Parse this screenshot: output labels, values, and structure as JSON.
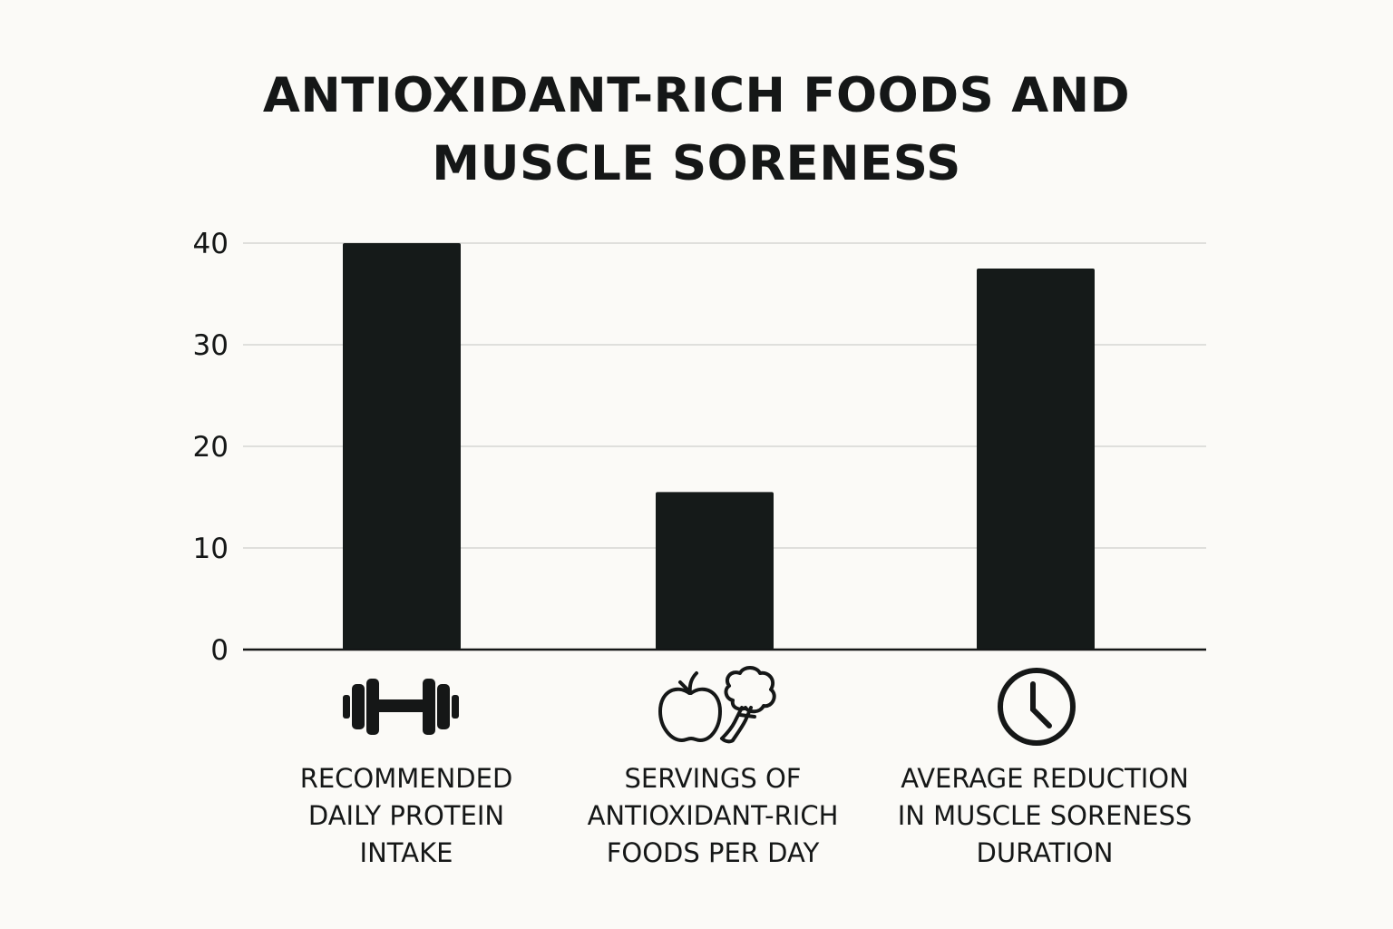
{
  "chart_data": {
    "type": "bar",
    "title": [
      "ANTIOXIDANT-RICH FOODS AND",
      "MUSCLE SORENESS"
    ],
    "categories": [
      [
        "RECOMMENDED",
        "DAILY PROTEIN",
        "INTAKE"
      ],
      [
        "SERVINGS OF",
        "ANTIOXIDANT-RICH",
        "FOODS PER DAY"
      ],
      [
        "AVERAGE REDUCTION",
        "IN MUSCLE SORENESS",
        "DURATION"
      ]
    ],
    "category_icons": [
      "dumbbell-icon",
      "apple-broccoli-icon",
      "clock-icon"
    ],
    "values": [
      40,
      15.5,
      37.5
    ],
    "ylim": [
      0,
      40
    ],
    "yticks": [
      "0",
      "10",
      "20",
      "30",
      "40"
    ],
    "grid": true,
    "bar_color": "#151a19",
    "grid_color": "#d6d6d4",
    "axis_color": "#151717"
  }
}
